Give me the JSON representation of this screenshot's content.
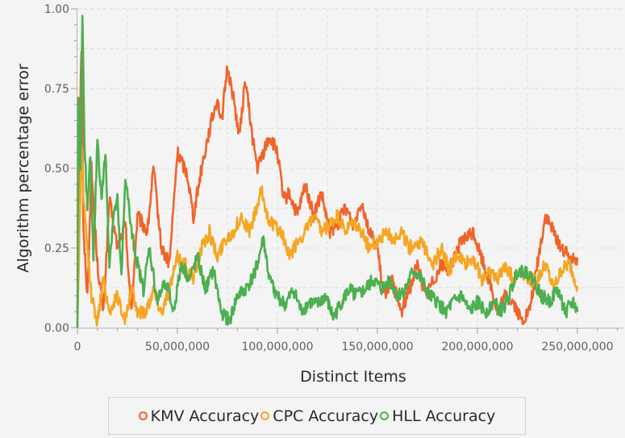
{
  "chart_data": {
    "type": "line",
    "xlabel": "Distinct Items",
    "ylabel": "Algorithm percentage error",
    "xlim": [
      0,
      250000000
    ],
    "ylim": [
      0,
      1.0
    ],
    "x_ticks": [
      "0",
      "50,000,000",
      "100,000,000",
      "150,000,000",
      "200,000,000",
      "250,000,000"
    ],
    "y_ticks": [
      "0.00",
      "0.25",
      "0.50",
      "0.75",
      "1.00"
    ],
    "grid": true,
    "legend_position": "bottom",
    "series": [
      {
        "name": "KMV Accuracy",
        "color": "#f0642a",
        "points": [
          [
            0,
            0.05
          ],
          [
            1000000,
            0.55
          ],
          [
            2000000,
            0.88
          ],
          [
            3000000,
            0.3
          ],
          [
            5000000,
            0.1
          ],
          [
            7000000,
            0.5
          ],
          [
            10000000,
            0.2
          ],
          [
            13000000,
            0.05
          ],
          [
            16000000,
            0.4
          ],
          [
            20000000,
            0.25
          ],
          [
            24000000,
            0.32
          ],
          [
            27000000,
            0.05
          ],
          [
            30000000,
            0.35
          ],
          [
            35000000,
            0.3
          ],
          [
            38000000,
            0.5
          ],
          [
            42000000,
            0.25
          ],
          [
            46000000,
            0.2
          ],
          [
            50000000,
            0.55
          ],
          [
            55000000,
            0.48
          ],
          [
            58000000,
            0.35
          ],
          [
            62000000,
            0.5
          ],
          [
            66000000,
            0.62
          ],
          [
            70000000,
            0.72
          ],
          [
            72000000,
            0.64
          ],
          [
            75000000,
            0.82
          ],
          [
            78000000,
            0.72
          ],
          [
            81000000,
            0.6
          ],
          [
            84000000,
            0.78
          ],
          [
            87000000,
            0.62
          ],
          [
            90000000,
            0.5
          ],
          [
            93000000,
            0.55
          ],
          [
            96000000,
            0.6
          ],
          [
            100000000,
            0.55
          ],
          [
            103000000,
            0.4
          ],
          [
            106000000,
            0.42
          ],
          [
            110000000,
            0.35
          ],
          [
            114000000,
            0.45
          ],
          [
            118000000,
            0.35
          ],
          [
            122000000,
            0.42
          ],
          [
            126000000,
            0.3
          ],
          [
            130000000,
            0.32
          ],
          [
            134000000,
            0.38
          ],
          [
            138000000,
            0.32
          ],
          [
            142000000,
            0.4
          ],
          [
            146000000,
            0.3
          ],
          [
            150000000,
            0.25
          ],
          [
            153000000,
            0.1
          ],
          [
            157000000,
            0.15
          ],
          [
            162000000,
            0.05
          ],
          [
            166000000,
            0.12
          ],
          [
            170000000,
            0.2
          ],
          [
            174000000,
            0.1
          ],
          [
            178000000,
            0.15
          ],
          [
            182000000,
            0.2
          ],
          [
            186000000,
            0.18
          ],
          [
            190000000,
            0.25
          ],
          [
            194000000,
            0.28
          ],
          [
            198000000,
            0.3
          ],
          [
            202000000,
            0.22
          ],
          [
            206000000,
            0.15
          ],
          [
            210000000,
            0.05
          ],
          [
            214000000,
            0.1
          ],
          [
            218000000,
            0.08
          ],
          [
            222000000,
            0.02
          ],
          [
            226000000,
            0.05
          ],
          [
            230000000,
            0.2
          ],
          [
            234000000,
            0.35
          ],
          [
            238000000,
            0.3
          ],
          [
            242000000,
            0.25
          ],
          [
            246000000,
            0.22
          ],
          [
            250000000,
            0.22
          ]
        ]
      },
      {
        "name": "CPC Accuracy",
        "color": "#f5a623",
        "points": [
          [
            0,
            0.0
          ],
          [
            1000000,
            0.3
          ],
          [
            2000000,
            0.58
          ],
          [
            3000000,
            0.4
          ],
          [
            5000000,
            0.25
          ],
          [
            7000000,
            0.1
          ],
          [
            10000000,
            0.02
          ],
          [
            13000000,
            0.15
          ],
          [
            16000000,
            0.05
          ],
          [
            20000000,
            0.1
          ],
          [
            24000000,
            0.02
          ],
          [
            27000000,
            0.12
          ],
          [
            30000000,
            0.05
          ],
          [
            34000000,
            0.05
          ],
          [
            38000000,
            0.12
          ],
          [
            42000000,
            0.05
          ],
          [
            46000000,
            0.12
          ],
          [
            50000000,
            0.22
          ],
          [
            54000000,
            0.2
          ],
          [
            58000000,
            0.15
          ],
          [
            62000000,
            0.25
          ],
          [
            66000000,
            0.3
          ],
          [
            70000000,
            0.22
          ],
          [
            74000000,
            0.28
          ],
          [
            78000000,
            0.3
          ],
          [
            82000000,
            0.35
          ],
          [
            86000000,
            0.3
          ],
          [
            90000000,
            0.38
          ],
          [
            92000000,
            0.43
          ],
          [
            95000000,
            0.35
          ],
          [
            98000000,
            0.32
          ],
          [
            102000000,
            0.3
          ],
          [
            106000000,
            0.22
          ],
          [
            110000000,
            0.27
          ],
          [
            114000000,
            0.3
          ],
          [
            118000000,
            0.35
          ],
          [
            122000000,
            0.3
          ],
          [
            126000000,
            0.32
          ],
          [
            130000000,
            0.35
          ],
          [
            134000000,
            0.3
          ],
          [
            138000000,
            0.33
          ],
          [
            142000000,
            0.3
          ],
          [
            146000000,
            0.25
          ],
          [
            150000000,
            0.27
          ],
          [
            154000000,
            0.3
          ],
          [
            158000000,
            0.28
          ],
          [
            162000000,
            0.3
          ],
          [
            166000000,
            0.25
          ],
          [
            170000000,
            0.27
          ],
          [
            174000000,
            0.25
          ],
          [
            178000000,
            0.2
          ],
          [
            182000000,
            0.25
          ],
          [
            186000000,
            0.18
          ],
          [
            190000000,
            0.23
          ],
          [
            194000000,
            0.2
          ],
          [
            198000000,
            0.22
          ],
          [
            202000000,
            0.15
          ],
          [
            206000000,
            0.18
          ],
          [
            210000000,
            0.15
          ],
          [
            214000000,
            0.2
          ],
          [
            218000000,
            0.15
          ],
          [
            222000000,
            0.18
          ],
          [
            226000000,
            0.15
          ],
          [
            230000000,
            0.15
          ],
          [
            234000000,
            0.2
          ],
          [
            238000000,
            0.12
          ],
          [
            242000000,
            0.18
          ],
          [
            246000000,
            0.2
          ],
          [
            250000000,
            0.13
          ]
        ]
      },
      {
        "name": "HLL Accuracy",
        "color": "#4caf50",
        "points": [
          [
            0,
            0.0
          ],
          [
            500000,
            0.7
          ],
          [
            1500000,
            0.5
          ],
          [
            2500000,
            0.98
          ],
          [
            3500000,
            0.6
          ],
          [
            5000000,
            0.35
          ],
          [
            6500000,
            0.55
          ],
          [
            8000000,
            0.2
          ],
          [
            10000000,
            0.6
          ],
          [
            12000000,
            0.4
          ],
          [
            14000000,
            0.55
          ],
          [
            16000000,
            0.2
          ],
          [
            18000000,
            0.35
          ],
          [
            20000000,
            0.4
          ],
          [
            22000000,
            0.15
          ],
          [
            24000000,
            0.48
          ],
          [
            27000000,
            0.3
          ],
          [
            30000000,
            0.2
          ],
          [
            33000000,
            0.12
          ],
          [
            36000000,
            0.25
          ],
          [
            40000000,
            0.08
          ],
          [
            44000000,
            0.15
          ],
          [
            48000000,
            0.05
          ],
          [
            52000000,
            0.2
          ],
          [
            56000000,
            0.15
          ],
          [
            60000000,
            0.22
          ],
          [
            64000000,
            0.12
          ],
          [
            68000000,
            0.18
          ],
          [
            72000000,
            0.05
          ],
          [
            76000000,
            0.02
          ],
          [
            80000000,
            0.1
          ],
          [
            84000000,
            0.12
          ],
          [
            87000000,
            0.15
          ],
          [
            90000000,
            0.2
          ],
          [
            93000000,
            0.28
          ],
          [
            96000000,
            0.15
          ],
          [
            100000000,
            0.1
          ],
          [
            104000000,
            0.07
          ],
          [
            108000000,
            0.12
          ],
          [
            112000000,
            0.05
          ],
          [
            116000000,
            0.08
          ],
          [
            120000000,
            0.07
          ],
          [
            124000000,
            0.1
          ],
          [
            128000000,
            0.03
          ],
          [
            132000000,
            0.08
          ],
          [
            136000000,
            0.12
          ],
          [
            140000000,
            0.1
          ],
          [
            144000000,
            0.12
          ],
          [
            148000000,
            0.15
          ],
          [
            152000000,
            0.12
          ],
          [
            156000000,
            0.15
          ],
          [
            160000000,
            0.1
          ],
          [
            164000000,
            0.12
          ],
          [
            168000000,
            0.18
          ],
          [
            172000000,
            0.15
          ],
          [
            176000000,
            0.1
          ],
          [
            180000000,
            0.08
          ],
          [
            184000000,
            0.05
          ],
          [
            188000000,
            0.08
          ],
          [
            192000000,
            0.1
          ],
          [
            196000000,
            0.05
          ],
          [
            200000000,
            0.08
          ],
          [
            204000000,
            0.05
          ],
          [
            208000000,
            0.08
          ],
          [
            212000000,
            0.05
          ],
          [
            216000000,
            0.1
          ],
          [
            220000000,
            0.18
          ],
          [
            224000000,
            0.18
          ],
          [
            228000000,
            0.15
          ],
          [
            232000000,
            0.1
          ],
          [
            236000000,
            0.08
          ],
          [
            240000000,
            0.12
          ],
          [
            244000000,
            0.05
          ],
          [
            248000000,
            0.08
          ],
          [
            250000000,
            0.05
          ]
        ]
      }
    ]
  }
}
